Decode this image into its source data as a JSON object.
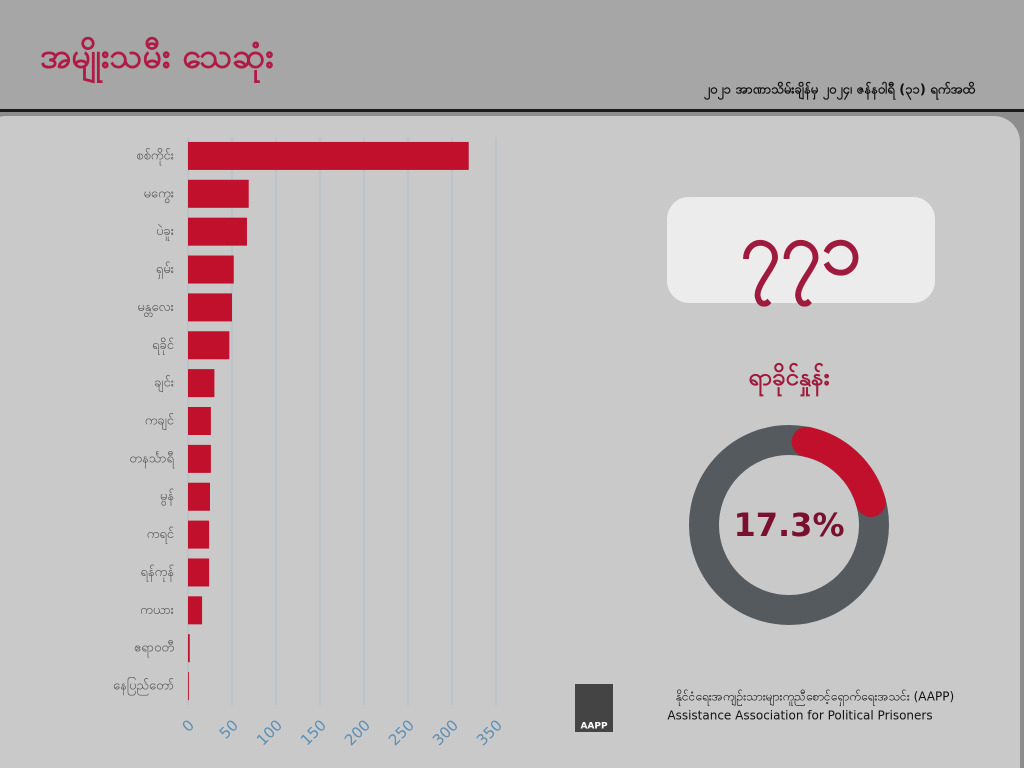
{
  "header": {
    "title": "အမျိုးသမီး သေဆုံး",
    "subtitle": "၂၀၂၁ အာဏာသိမ်းချိန်မှ ၂၀၂၄၊ ဇန်နဝါရီ (၃၁) ရက်အထိ"
  },
  "highlight": "၇၇၁",
  "chart_data": [
    {
      "type": "hbar",
      "categories": [
        "စစ်ကိုင်း",
        "မကွေး",
        "ပဲခူး",
        "ရှမ်း",
        "မန္တလေး",
        "ရခိုင်",
        "ချင်း",
        "ကချင်",
        "တနင်္သာရီ",
        "မွန်",
        "ကရင်",
        "ရန်ကုန်",
        "ကယား",
        "ဧရာဝတီ",
        "နေပြည်တော်"
      ],
      "values": [
        319,
        69,
        67,
        52,
        50,
        47,
        30,
        26,
        26,
        25,
        24,
        24,
        16,
        2,
        1
      ],
      "color": "#c0102c",
      "xlim": [
        0,
        350
      ],
      "xticks": [
        0,
        50,
        100,
        150,
        200,
        250,
        300,
        350
      ],
      "grid": true
    },
    {
      "type": "donut",
      "title": "ရာခိုင်နှုန်း",
      "values": [
        17.3
      ],
      "value_labels": [
        "17.3%"
      ],
      "color": "#c0102c",
      "rest_color": "#555a5e"
    }
  ],
  "footer": {
    "name_my": "နိုင်ငံရေးအကျဉ်းသားများကူညီစောင့်ရှောက်ရေးအသင်း (AAPP)",
    "name_en": "Assistance Association for Political Prisoners",
    "logo": "AAPP"
  }
}
